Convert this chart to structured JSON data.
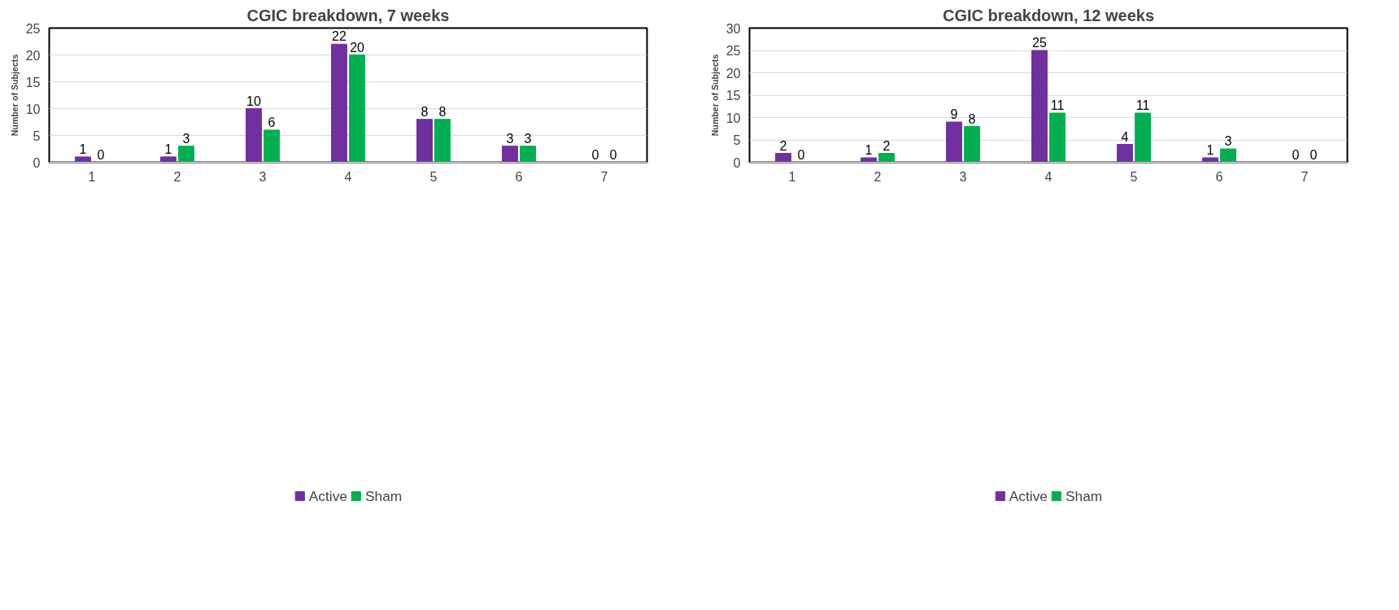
{
  "chart_data": [
    {
      "type": "bar",
      "title": "CGIC breakdown, 7 weeks",
      "ylabel": "Number of Subjects",
      "categories": [
        "1",
        "2",
        "3",
        "4",
        "5",
        "6",
        "7"
      ],
      "series": [
        {
          "name": "Active",
          "color": "#7030a0",
          "values": [
            1,
            1,
            10,
            22,
            8,
            3,
            0
          ]
        },
        {
          "name": "Sham",
          "color": "#00b050",
          "values": [
            0,
            3,
            6,
            20,
            8,
            3,
            0
          ]
        }
      ],
      "ylim": [
        0,
        25
      ],
      "yticks": [
        0,
        5,
        10,
        15,
        20,
        25
      ],
      "grid": "y",
      "legend": "bottom",
      "data_labels": true
    },
    {
      "type": "bar",
      "title": "CGIC breakdown, 12 weeks",
      "ylabel": "Number of Subjects",
      "categories": [
        "1",
        "2",
        "3",
        "4",
        "5",
        "6",
        "7"
      ],
      "series": [
        {
          "name": "Active",
          "color": "#7030a0",
          "values": [
            2,
            1,
            9,
            25,
            4,
            1,
            0
          ]
        },
        {
          "name": "Sham",
          "color": "#00b050",
          "values": [
            0,
            2,
            8,
            11,
            11,
            3,
            0
          ]
        }
      ],
      "ylim": [
        0,
        30
      ],
      "yticks": [
        0,
        5,
        10,
        15,
        20,
        25,
        30
      ],
      "grid": "y",
      "legend": "bottom",
      "data_labels": true
    }
  ]
}
